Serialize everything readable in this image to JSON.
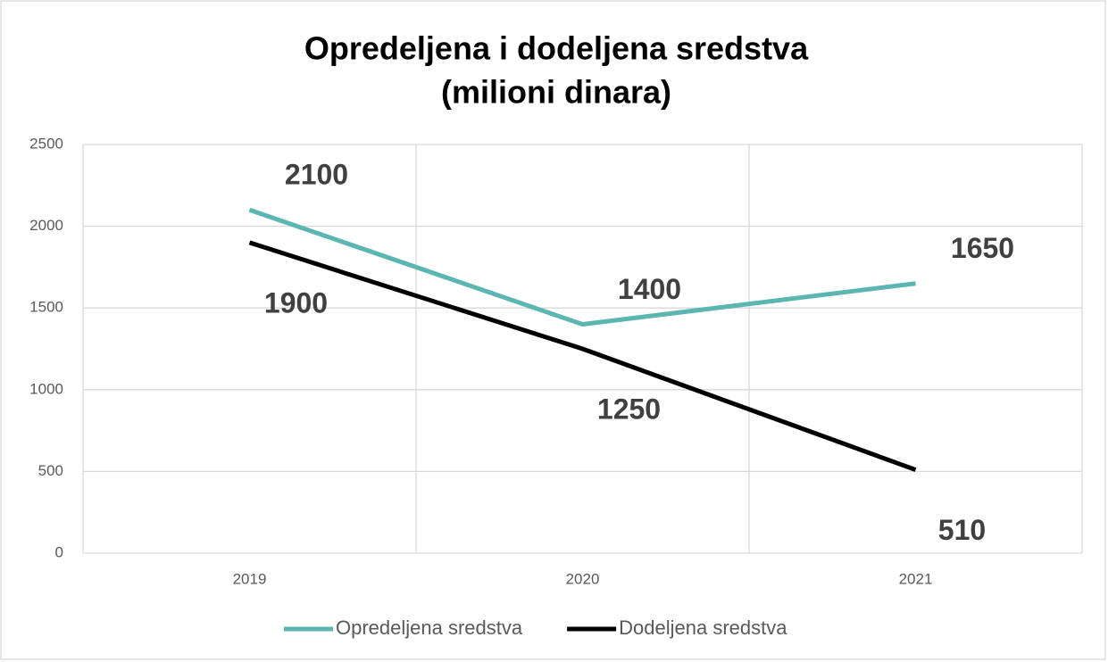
{
  "chart_data": {
    "type": "line",
    "title": [
      "Opredeljena i dodeljena sredstva",
      "(milioni dinara)"
    ],
    "categories": [
      "2019",
      "2020",
      "2021"
    ],
    "series": [
      {
        "name": "Opredeljena sredstva",
        "color": "#5bb5b0",
        "values": [
          2100,
          1400,
          1650
        ]
      },
      {
        "name": "Dodeljena sredstva",
        "color": "#000000",
        "values": [
          1900,
          1250,
          510
        ]
      }
    ],
    "ylim": [
      0,
      2500
    ],
    "yticks": [
      0,
      500,
      1000,
      1500,
      2000,
      2500
    ],
    "grid": true,
    "legend": "bottom"
  }
}
